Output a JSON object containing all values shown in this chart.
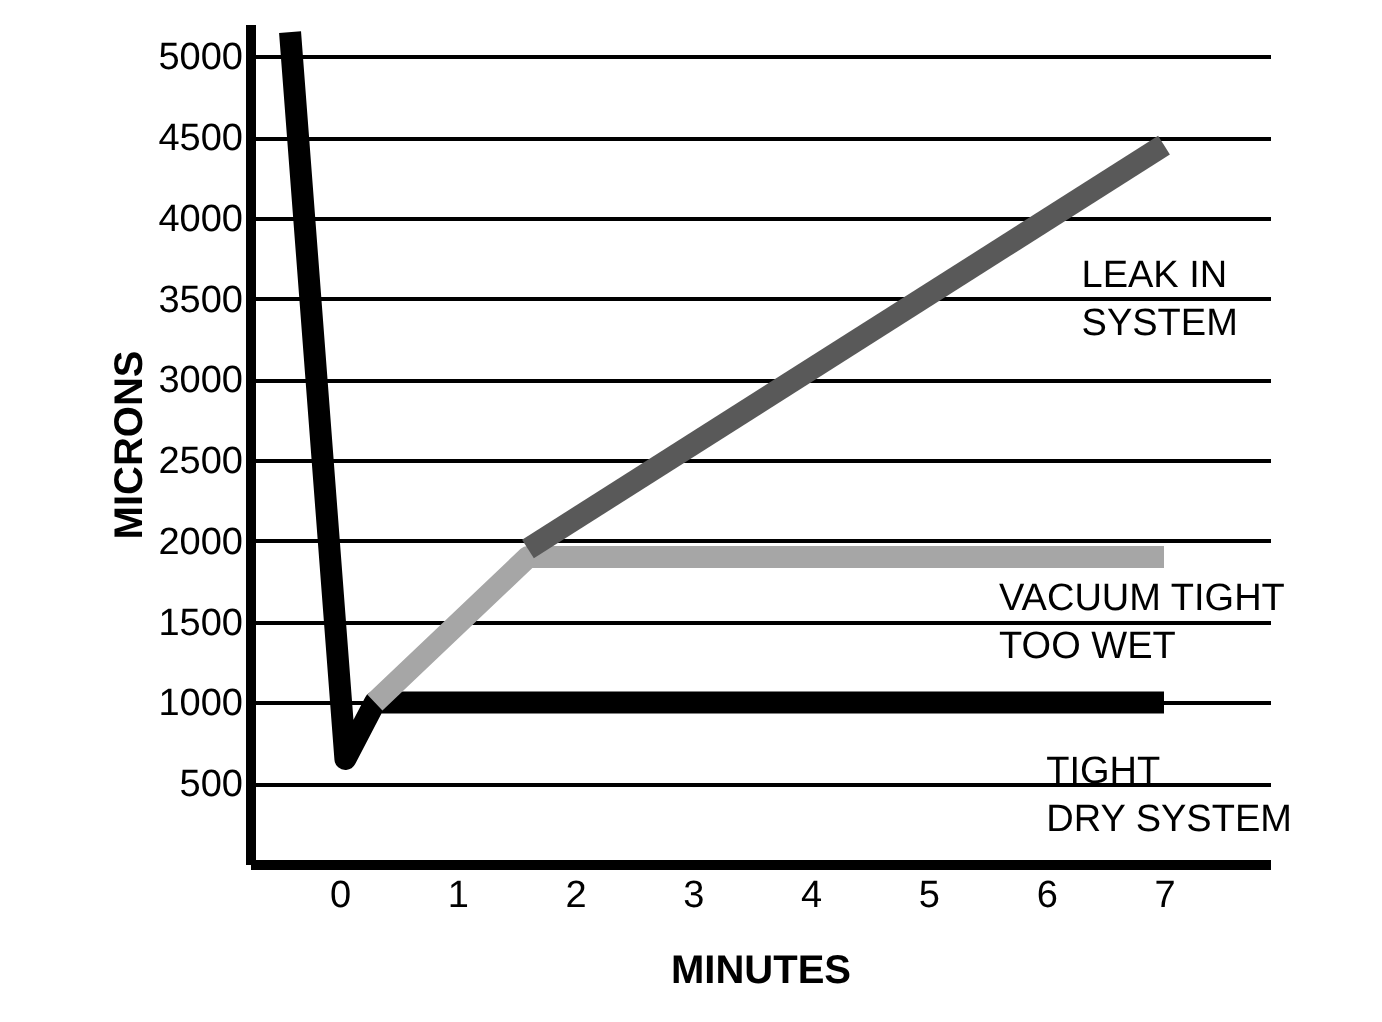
{
  "chart_data": {
    "type": "line",
    "xlabel": "MINUTES",
    "ylabel": "MICRONS",
    "xlim": [
      -0.76,
      7.9
    ],
    "ylim": [
      0,
      5200
    ],
    "xticks": [
      0,
      1,
      2,
      3,
      4,
      5,
      6,
      7
    ],
    "yticks": [
      500,
      1000,
      1500,
      2000,
      2500,
      3000,
      3500,
      4000,
      4500,
      5000
    ],
    "grid": "y",
    "series": [
      {
        "color": "#000000",
        "x": [
          -0.42,
          0.05,
          0.3,
          7
        ],
        "values": [
          5150,
          650,
          1000,
          1000
        ]
      },
      {
        "color": "#a6a6a6",
        "x": [
          0.3,
          1.6,
          7
        ],
        "values": [
          1000,
          1900,
          1900
        ]
      },
      {
        "color": "#595959",
        "x": [
          1.6,
          7
        ],
        "values": [
          1950,
          4450
        ]
      }
    ],
    "annotations": [
      "LEAK IN\nSYSTEM",
      "VACUUM TIGHT\nTOO WET",
      "TIGHT\nDRY SYSTEM"
    ]
  }
}
